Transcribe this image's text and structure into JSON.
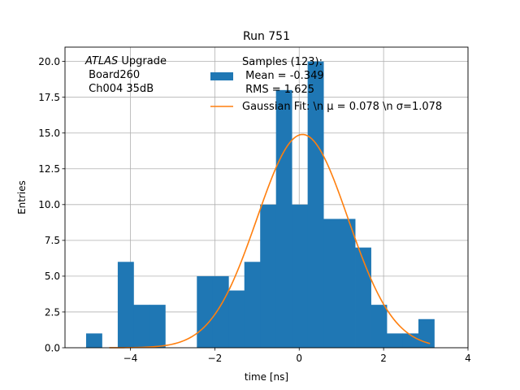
{
  "chart_data": {
    "type": "bar",
    "title": "Run 751",
    "xlabel": "time [ns]",
    "ylabel": "Entries",
    "xlim": [
      -5.55,
      4.0
    ],
    "ylim": [
      0,
      21
    ],
    "grid": true,
    "xticks": [
      -4,
      -2,
      0,
      2,
      4
    ],
    "xtick_labels": [
      "−4",
      "−2",
      "0",
      "2",
      "4"
    ],
    "yticks": [
      0,
      2.5,
      5,
      7.5,
      10,
      12.5,
      15,
      17.5,
      20
    ],
    "ytick_labels": [
      "0.0",
      "2.5",
      "5.0",
      "7.5",
      "10.0",
      "12.5",
      "15.0",
      "17.5",
      "20.0"
    ],
    "annotation": {
      "line1_italic": "ATLAS",
      "line1_rest": " Upgrade",
      "line2": " Board260",
      "line3": " Ch004 35dB"
    },
    "histogram": {
      "color": "#1f77b4",
      "legend_lines": [
        "Samples (123):",
        " Mean = -0.349",
        " RMS = 1.625"
      ],
      "bins": [
        {
          "x0": -5.05,
          "x1": -4.675,
          "count": 1
        },
        {
          "x0": -4.675,
          "x1": -4.3,
          "count": 0
        },
        {
          "x0": -4.3,
          "x1": -3.925,
          "count": 6
        },
        {
          "x0": -3.925,
          "x1": -3.55,
          "count": 3
        },
        {
          "x0": -3.55,
          "x1": -3.175,
          "count": 3
        },
        {
          "x0": -3.175,
          "x1": -2.8,
          "count": 0
        },
        {
          "x0": -2.8,
          "x1": -2.425,
          "count": 0
        },
        {
          "x0": -2.425,
          "x1": -2.05,
          "count": 5
        },
        {
          "x0": -2.05,
          "x1": -1.675,
          "count": 5
        },
        {
          "x0": -1.675,
          "x1": -1.3,
          "count": 4
        },
        {
          "x0": -1.3,
          "x1": -0.925,
          "count": 6
        },
        {
          "x0": -0.925,
          "x1": -0.55,
          "count": 10
        },
        {
          "x0": -0.55,
          "x1": -0.175,
          "count": 18
        },
        {
          "x0": -0.175,
          "x1": 0.2,
          "count": 10
        },
        {
          "x0": 0.2,
          "x1": 0.575,
          "count": 20
        },
        {
          "x0": 0.575,
          "x1": 0.95,
          "count": 9
        },
        {
          "x0": 0.95,
          "x1": 1.325,
          "count": 9
        },
        {
          "x0": 1.325,
          "x1": 1.7,
          "count": 7
        },
        {
          "x0": 1.7,
          "x1": 2.075,
          "count": 3
        },
        {
          "x0": 2.075,
          "x1": 2.45,
          "count": 1
        },
        {
          "x0": 2.45,
          "x1": 2.825,
          "count": 1
        },
        {
          "x0": 2.825,
          "x1": 3.2,
          "count": 2
        }
      ]
    },
    "fit": {
      "color": "#ff7f0e",
      "legend_label": "Gaussian Fit: \\n μ = 0.078 \\n σ=1.078",
      "amplitude": 14.9,
      "mean": 0.078,
      "sigma": 1.078,
      "x_range": [
        -4.5,
        3.1
      ]
    }
  }
}
